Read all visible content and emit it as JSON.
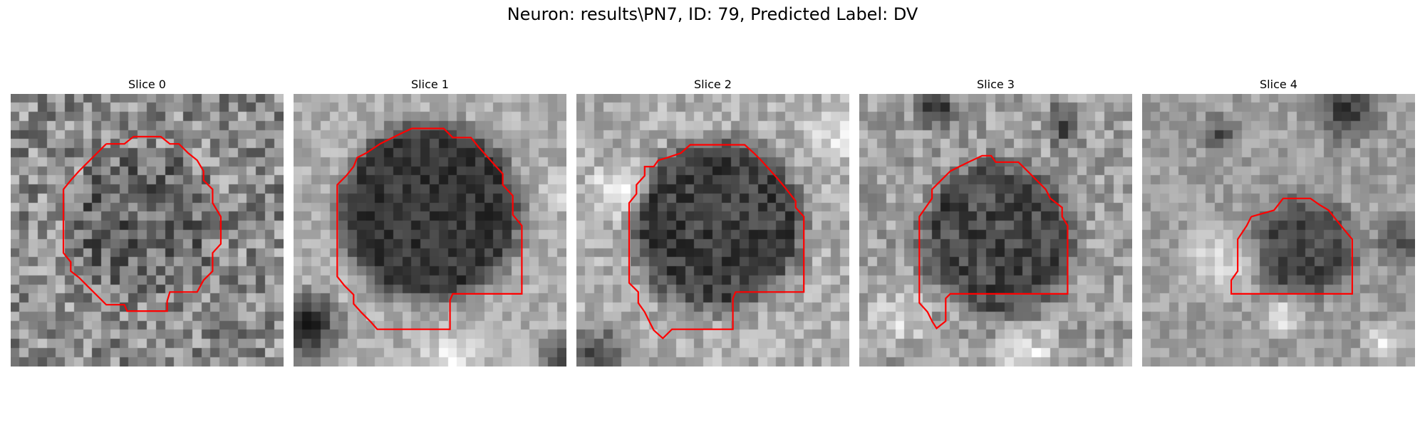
{
  "figure": {
    "suptitle": "Neuron: results\\PN7, ID: 79, Predicted Label: DV"
  },
  "panels": [
    {
      "title": "Slice 0"
    },
    {
      "title": "Slice 1"
    },
    {
      "title": "Slice 2"
    },
    {
      "title": "Slice 3"
    },
    {
      "title": "Slice 4"
    }
  ],
  "colors": {
    "contour": "#ff0000",
    "background": "#ffffff"
  }
}
